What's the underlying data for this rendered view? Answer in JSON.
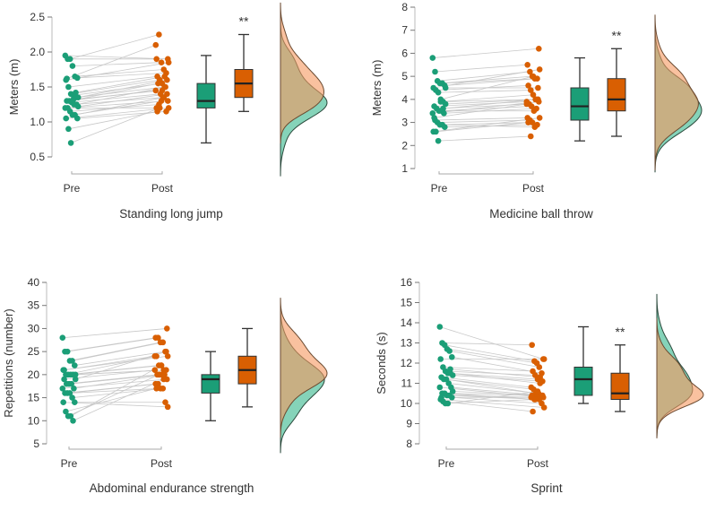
{
  "colors": {
    "pre": "#1b9e77",
    "post": "#d95f02",
    "pre_density": "#5cc4a2",
    "post_density": "#f5975f",
    "line": "#c8c8c8",
    "axis": "#555555"
  },
  "chart_data": [
    {
      "type": "raincloud",
      "title": "Standing long jump",
      "ylabel": "Meters (m)",
      "ylim": [
        0.5,
        2.5
      ],
      "yticks": [
        "0.5",
        "1.0",
        "1.5",
        "2.0",
        "2.5"
      ],
      "categories": [
        "Pre",
        "Post"
      ],
      "significance": "**",
      "pre": [
        1.95,
        1.9,
        1.9,
        1.8,
        1.65,
        1.63,
        1.6,
        1.5,
        1.4,
        1.38,
        1.35,
        1.35,
        1.3,
        1.3,
        1.28,
        1.25,
        1.25,
        1.2,
        1.2,
        1.15,
        1.1,
        1.1,
        1.05,
        1.05,
        0.9,
        0.7,
        1.32,
        1.42,
        1.22,
        1.62
      ],
      "post": [
        1.9,
        1.9,
        2.25,
        1.85,
        1.75,
        1.7,
        1.85,
        1.65,
        1.6,
        1.55,
        1.5,
        1.6,
        1.45,
        1.55,
        1.4,
        1.35,
        1.5,
        1.3,
        1.2,
        1.25,
        1.3,
        1.35,
        1.15,
        1.2,
        1.15,
        1.2,
        1.45,
        1.65,
        1.4,
        2.1
      ],
      "box_pre": {
        "min": 0.7,
        "q1": 1.2,
        "median": 1.3,
        "q3": 1.55,
        "max": 1.95
      },
      "box_post": {
        "min": 1.15,
        "q1": 1.35,
        "median": 1.55,
        "q3": 1.75,
        "max": 2.25
      }
    },
    {
      "type": "raincloud",
      "title": "Medicine ball throw",
      "ylabel": "Meters (m)",
      "ylim": [
        1,
        8
      ],
      "yticks": [
        "1",
        "2",
        "3",
        "4",
        "5",
        "6",
        "7",
        "8"
      ],
      "categories": [
        "Pre",
        "Post"
      ],
      "significance": "**",
      "pre": [
        5.8,
        5.2,
        4.8,
        4.7,
        4.7,
        4.6,
        4.5,
        4.4,
        4.3,
        3.9,
        3.9,
        3.8,
        3.7,
        3.6,
        3.5,
        3.5,
        3.4,
        3.4,
        3.1,
        3.0,
        2.9,
        2.9,
        2.8,
        2.6,
        2.6,
        2.2,
        4.0,
        3.6,
        4.5,
        3.2
      ],
      "post": [
        6.2,
        5.5,
        5.2,
        5.0,
        4.9,
        4.9,
        5.3,
        4.6,
        4.4,
        4.2,
        4.0,
        4.0,
        3.9,
        3.8,
        3.7,
        3.5,
        3.6,
        3.9,
        3.2,
        3.1,
        3.0,
        2.8,
        2.9,
        3.2,
        3.0,
        2.4,
        5.0,
        4.0,
        4.5,
        3.8
      ],
      "box_pre": {
        "min": 2.2,
        "q1": 3.1,
        "median": 3.7,
        "q3": 4.5,
        "max": 5.8
      },
      "box_post": {
        "min": 2.4,
        "q1": 3.5,
        "median": 4.0,
        "q3": 4.9,
        "max": 6.2
      }
    },
    {
      "type": "raincloud",
      "title": "Abdominal endurance strength",
      "ylabel": "Repetitions (number)",
      "ylim": [
        5,
        40
      ],
      "yticks": [
        "5",
        "10",
        "15",
        "20",
        "25",
        "30",
        "35",
        "40"
      ],
      "categories": [
        "Pre",
        "Post"
      ],
      "significance": "",
      "pre": [
        28,
        25,
        25,
        23,
        23,
        22,
        21,
        20,
        20,
        20,
        20,
        20,
        19,
        18,
        18,
        18,
        17,
        17,
        16,
        16,
        16,
        15,
        14,
        14,
        12,
        11,
        11,
        10,
        19,
        21
      ],
      "post": [
        30,
        28,
        28,
        27,
        27,
        25,
        24,
        24,
        22,
        22,
        21,
        21,
        21,
        20,
        20,
        20,
        20,
        19,
        18,
        18,
        17,
        17,
        14,
        13,
        17,
        20,
        22,
        19,
        25,
        24
      ],
      "box_pre": {
        "min": 10,
        "q1": 16,
        "median": 19,
        "q3": 20,
        "max": 25
      },
      "box_post": {
        "min": 13,
        "q1": 18,
        "median": 21,
        "q3": 24,
        "max": 30
      }
    },
    {
      "type": "raincloud",
      "title": "Sprint",
      "ylabel": "Seconds (s)",
      "ylim": [
        8,
        16
      ],
      "yticks": [
        "8",
        "9",
        "10",
        "11",
        "12",
        "13",
        "14",
        "15",
        "16"
      ],
      "categories": [
        "Pre",
        "Post"
      ],
      "significance": "**",
      "pre": [
        13.8,
        13.0,
        12.9,
        12.7,
        12.6,
        12.3,
        12.2,
        11.8,
        11.6,
        11.5,
        11.5,
        11.4,
        11.3,
        11.2,
        11.2,
        11.0,
        10.8,
        10.8,
        10.5,
        10.5,
        10.4,
        10.4,
        10.3,
        10.2,
        10.1,
        10.0,
        10.0,
        11.7,
        10.6,
        10.3
      ],
      "post": [
        12.2,
        12.9,
        12.1,
        12.0,
        11.8,
        11.5,
        12.2,
        11.6,
        11.4,
        11.2,
        11.0,
        11.1,
        10.8,
        10.7,
        10.5,
        10.5,
        10.4,
        10.3,
        10.4,
        10.2,
        10.3,
        10.2,
        10.0,
        9.8,
        9.6,
        10.2,
        10.6,
        11.3,
        10.4,
        10.3
      ],
      "box_pre": {
        "min": 10.0,
        "q1": 10.4,
        "median": 11.2,
        "q3": 11.8,
        "max": 13.8
      },
      "box_post": {
        "min": 9.6,
        "q1": 10.2,
        "median": 10.5,
        "q3": 11.5,
        "max": 12.9
      }
    }
  ]
}
